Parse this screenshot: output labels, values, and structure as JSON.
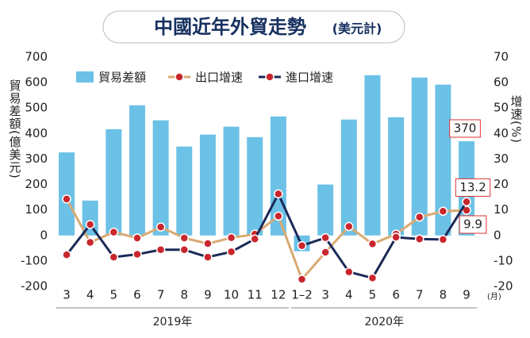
{
  "chart_data": {
    "type": "bar-line",
    "title": "中國近年外貿走勢",
    "subtitle": "(美元計)",
    "ylabel": "貿易差額(億美元)",
    "y2label": "增速(%)",
    "x_unit": "(月)",
    "category_groups": [
      {
        "name": "2019年",
        "categories": [
          "3",
          "4",
          "5",
          "6",
          "7",
          "8",
          "9",
          "10",
          "11",
          "12"
        ]
      },
      {
        "name": "2020年",
        "categories": [
          "1–2",
          "3",
          "4",
          "5",
          "6",
          "7",
          "8",
          "9"
        ]
      }
    ],
    "series": [
      {
        "name": "貿易差額",
        "type": "bar",
        "axis": "y",
        "color": "#6cc1e6",
        "label_last": true,
        "values": [
          326,
          137,
          417,
          511,
          452,
          349,
          396,
          427,
          386,
          467,
          -62,
          200,
          455,
          629,
          464,
          620,
          592,
          370
        ]
      },
      {
        "name": "出口增速",
        "type": "line",
        "axis": "y2",
        "color": "#d9aa72",
        "label_last": true,
        "values": [
          14.3,
          -2.7,
          1.3,
          -1.0,
          3.3,
          -1.0,
          -3.2,
          -0.9,
          0.5,
          7.6,
          -17.2,
          -6.6,
          3.5,
          -3.3,
          0.5,
          7.2,
          9.5,
          9.9
        ]
      },
      {
        "name": "進口增速",
        "type": "line",
        "axis": "y2",
        "color": "#1b2a57",
        "label_last": true,
        "values": [
          -7.6,
          4.3,
          -8.5,
          -7.4,
          -5.6,
          -5.6,
          -8.5,
          -6.4,
          -1.4,
          16.3,
          -4.0,
          -0.9,
          -14.3,
          -16.7,
          -0.7,
          -1.4,
          -1.6,
          13.2
        ]
      }
    ],
    "ylim": [
      -200,
      700
    ],
    "yticks": [
      -200,
      -100,
      0,
      100,
      200,
      300,
      400,
      500,
      600,
      700
    ],
    "y2lim": [
      -20,
      70
    ],
    "y2ticks": [
      -20,
      -10,
      0,
      10,
      20,
      30,
      40,
      50,
      60,
      70
    ]
  }
}
